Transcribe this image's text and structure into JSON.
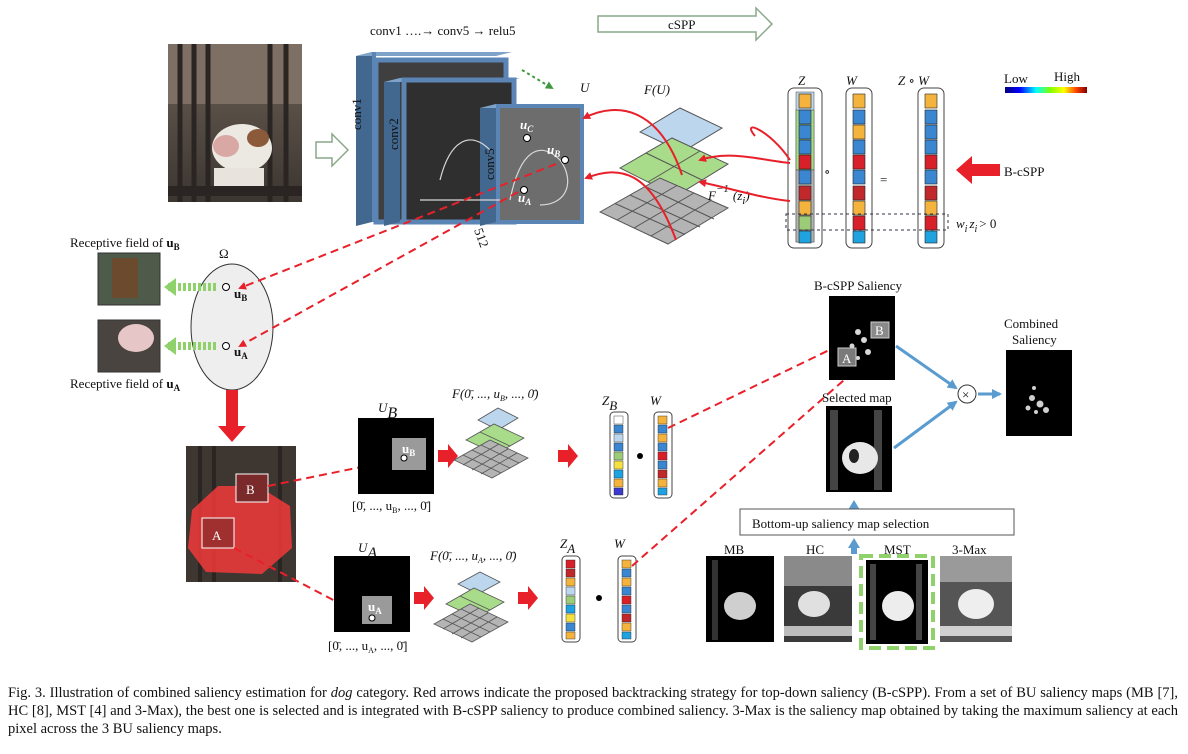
{
  "labels": {
    "cnn_layers": "conv1 ….→ conv5 → relu5",
    "cspp": "cSPP",
    "u": "U",
    "fu": "F(U)",
    "z": "Z",
    "w": "W",
    "zw": "Z ∘ W",
    "low": "Low",
    "high": "High",
    "b_cspp": "B-cSPP",
    "finv": "F",
    "finv_sup": "−1",
    "finv_arg": "(z",
    "finv_arg_sub": "i",
    "finv_close": ")",
    "wz": "w",
    "wz_sub": "i",
    "wz_z": "z",
    "wz_z_sub": "i",
    "wz_cond": "> 0",
    "conv1": "conv1",
    "conv2": "conv2",
    "conv5": "conv5",
    "depth": "512",
    "uc": "u",
    "uc_sub": "C",
    "ub": "u",
    "ub_sub": "B",
    "ua": "u",
    "ua_sub": "A",
    "omega": "Ω",
    "rf_b": "Receptive field of ",
    "rf_b_u": "u",
    "rf_b_sub": "B",
    "rf_a": "Receptive field of ",
    "rf_a_u": "u",
    "rf_a_sub": "A",
    "box_b": "B",
    "box_a": "A",
    "ub_map": "U",
    "ub_map_sub": "B",
    "ua_map": "U",
    "ua_map_sub": "A",
    "ub_vec": "[0̄, ..., u",
    "ub_vec_sub": "B",
    "ub_vec_end": ", ..., 0̄]",
    "ua_vec": "[0̄, ..., u",
    "ua_vec_sub": "A",
    "ua_vec_end": ", ..., 0̄]",
    "fb": "F(0̄, ..., u",
    "fb_sub": "B",
    "fb_end": ", ..., 0̄)",
    "fa": "F(0̄, ..., u",
    "fa_sub": "A",
    "fa_end": ", ..., 0̄)",
    "zb": "Z",
    "zb_sub": "B",
    "za": "Z",
    "za_sub": "A",
    "b_cspp_saliency": "B-cSPP  Saliency",
    "selected_map": "Selected map",
    "combined_1": "Combined",
    "combined_2": "Saliency",
    "times": "×",
    "bu_selection": "Bottom-up saliency map selection",
    "mb": "MB",
    "hc": "HC",
    "mst": "MST",
    "three_max": "3-Max"
  },
  "caption": {
    "p1": "Fig. 3.  Illustration of combined saliency estimation for ",
    "p1_em": "dog",
    "p2": " category. Red arrows indicate the proposed backtracking strategy for top-down saliency (B-cSPP). From a set of BU saliency maps (MB [7], HC [8], MST [4] and 3-Max), the best one is selected and is integrated with B-cSPP saliency to produce combined saliency. 3-Max is the saliency map obtained by taking the maximum saliency at each pixel across the 3 BU saliency maps."
  },
  "colors": {
    "red_arrow": "#e8202a",
    "green_arrow": "#8fd16a",
    "blue_arrow": "#5a9bd0",
    "cnn_blue": "#5b85b5",
    "plane_blue": "#bcd6ee",
    "plane_green": "#a9dc8a",
    "plane_gray": "#b4b4b4",
    "cell_orange": "#f3b33d",
    "cell_blue": "#3a86d0",
    "cell_red": "#d8202a",
    "cell_green": "#9ccc78",
    "cell_cyan": "#1ea2e0",
    "cell_yellow": "#f4e040"
  },
  "icons": [
    "dog-photo",
    "cnn-feature-stack",
    "spatial-pyramid-icon",
    "colorbar-icon",
    "saliency-map-thumbnail",
    "multiply-icon"
  ]
}
